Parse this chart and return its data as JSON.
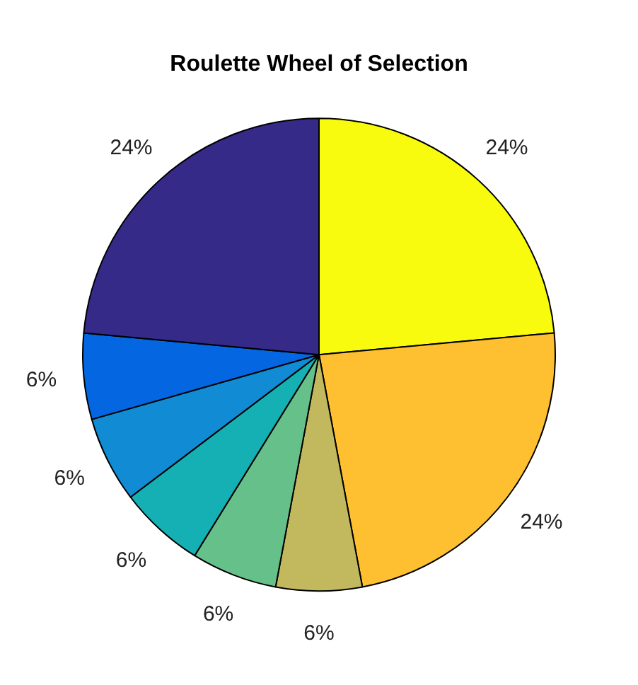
{
  "chart_data": {
    "type": "pie",
    "title": "Roulette Wheel of Selection",
    "categories": [
      null,
      null,
      null,
      null,
      null,
      null,
      null,
      null
    ],
    "values": [
      24,
      24,
      6,
      6,
      6,
      6,
      6,
      24
    ],
    "value_labels": [
      "24%",
      "24%",
      "6%",
      "6%",
      "6%",
      "6%",
      "6%",
      "24%"
    ],
    "colors": [
      "#f9fb0e",
      "#fec031",
      "#c2b95e",
      "#66c08a",
      "#14b0b3",
      "#118bd3",
      "#0466e0",
      "#352a87"
    ],
    "legend": false
  }
}
